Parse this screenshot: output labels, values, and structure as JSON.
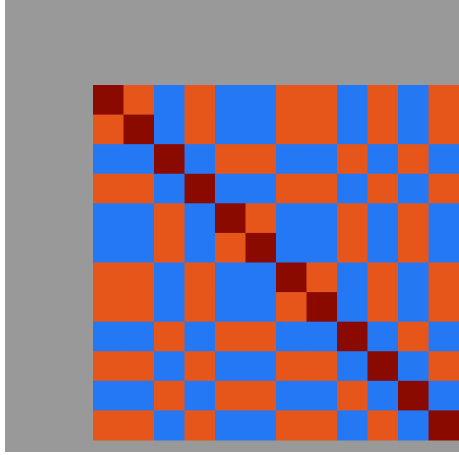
{
  "chart_data": {
    "type": "heatmap",
    "zlim": [
      -1,
      1
    ],
    "colormap": [
      "#00108f",
      "#0a5cf0",
      "#8fe6ff",
      "#fff4e8",
      "#ffae5c",
      "#e0400a",
      "#8a0a00"
    ],
    "values": [
      [
        1,
        0.6,
        -0.6,
        0.6,
        -0.6,
        -0.6,
        0.6,
        0.6,
        -0.6,
        0.6,
        -0.6,
        0.6
      ],
      [
        0.6,
        1,
        -0.6,
        0.6,
        -0.6,
        -0.6,
        0.6,
        0.6,
        -0.6,
        0.6,
        -0.6,
        0.6
      ],
      [
        -0.6,
        -0.6,
        1,
        -0.6,
        0.6,
        0.6,
        -0.6,
        -0.6,
        0.6,
        -0.6,
        0.6,
        -0.6
      ],
      [
        0.6,
        0.6,
        -0.6,
        1,
        -0.6,
        -0.6,
        0.6,
        0.6,
        -0.6,
        0.6,
        -0.6,
        0.6
      ],
      [
        -0.6,
        -0.6,
        0.6,
        -0.6,
        1,
        0.6,
        -0.6,
        -0.6,
        0.6,
        -0.6,
        0.6,
        -0.6
      ],
      [
        -0.6,
        -0.6,
        0.6,
        -0.6,
        0.6,
        1,
        -0.6,
        -0.6,
        0.6,
        -0.6,
        0.6,
        -0.6
      ],
      [
        0.6,
        0.6,
        -0.6,
        0.6,
        -0.6,
        -0.6,
        1,
        0.6,
        -0.6,
        0.6,
        -0.6,
        0.6
      ],
      [
        0.6,
        0.6,
        -0.6,
        0.6,
        -0.6,
        -0.6,
        0.6,
        1,
        -0.6,
        0.6,
        -0.6,
        0.6
      ],
      [
        -0.6,
        -0.6,
        0.6,
        -0.6,
        0.6,
        0.6,
        -0.6,
        -0.6,
        1,
        -0.6,
        0.6,
        -0.6
      ],
      [
        0.6,
        0.6,
        -0.6,
        0.6,
        -0.6,
        -0.6,
        0.6,
        0.6,
        -0.6,
        1,
        -0.6,
        0.6
      ],
      [
        -0.6,
        -0.6,
        0.6,
        -0.6,
        0.6,
        0.6,
        -0.6,
        -0.6,
        0.6,
        -0.6,
        1,
        -0.6
      ],
      [
        0.6,
        0.6,
        -0.6,
        0.6,
        -0.6,
        -0.6,
        0.6,
        0.6,
        -0.6,
        0.6,
        -0.6,
        1
      ]
    ]
  }
}
